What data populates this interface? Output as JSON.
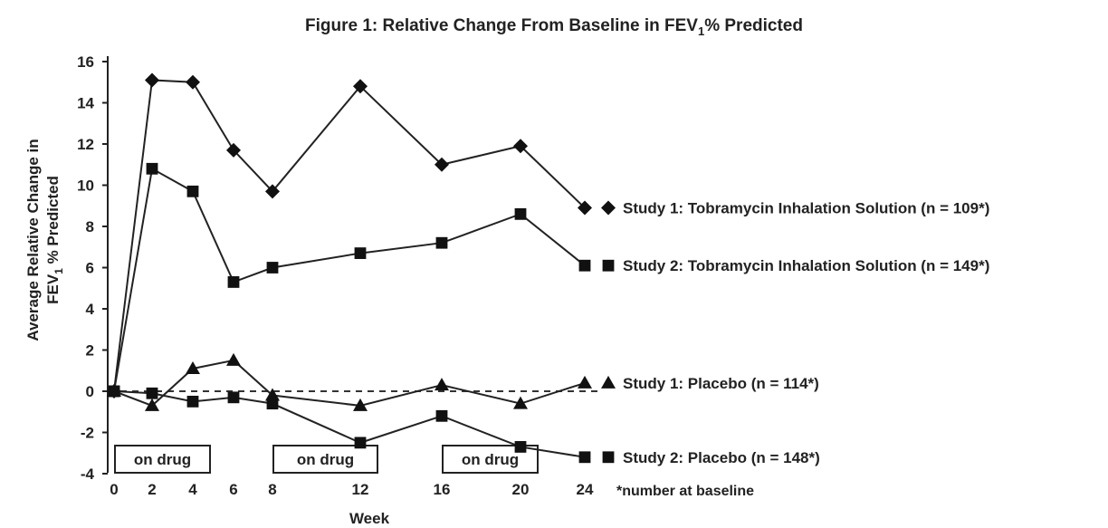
{
  "chart_data": {
    "type": "line",
    "title_pre": "Figure 1: Relative Change From Baseline in FEV",
    "title_sub": "1",
    "title_post": "% Predicted",
    "xlabel": "Week",
    "ylabel_line1": "Average Relative Change in",
    "ylabel_line2_pre": "FEV",
    "ylabel_line2_sub": "1",
    "ylabel_line2_post": " % Predicted",
    "x_ticks": [
      0,
      2,
      4,
      6,
      8,
      12,
      16,
      20,
      24
    ],
    "y_ticks": [
      16,
      14,
      12,
      10,
      8,
      6,
      4,
      2,
      0,
      -2,
      -4
    ],
    "ylim": [
      -4,
      16
    ],
    "grid": false,
    "legend_position": "right",
    "reference_line": {
      "y": 0,
      "style": "dashed"
    },
    "on_drug_label": "on drug",
    "on_drug_periods": [
      [
        0,
        4
      ],
      [
        8,
        12
      ],
      [
        16,
        20
      ]
    ],
    "note": "*number at baseline",
    "series": [
      {
        "name": "Study 1: Tobramycin Inhalation Solution (n = 109*)",
        "marker": "diamond",
        "x": [
          0,
          2,
          4,
          6,
          8,
          12,
          16,
          20,
          24
        ],
        "y": [
          0,
          15.1,
          15.0,
          11.7,
          9.7,
          14.8,
          11.0,
          11.9,
          8.9
        ]
      },
      {
        "name": "Study 2: Tobramycin Inhalation Solution (n = 149*)",
        "marker": "square",
        "x": [
          0,
          2,
          4,
          6,
          8,
          12,
          16,
          20,
          24
        ],
        "y": [
          0,
          10.8,
          9.7,
          5.3,
          6.0,
          6.7,
          7.2,
          8.6,
          6.1
        ]
      },
      {
        "name": "Study 1: Placebo (n = 114*)",
        "marker": "triangle",
        "x": [
          0,
          2,
          4,
          6,
          8,
          12,
          16,
          20,
          24
        ],
        "y": [
          0,
          -0.7,
          1.1,
          1.5,
          -0.2,
          -0.7,
          0.3,
          -0.6,
          0.4
        ]
      },
      {
        "name": "Study 2: Placebo (n = 148*)",
        "marker": "square",
        "x": [
          0,
          2,
          4,
          6,
          8,
          12,
          16,
          20,
          24
        ],
        "y": [
          0,
          -0.1,
          -0.5,
          -0.3,
          -0.6,
          -2.5,
          -1.2,
          -2.7,
          -3.2
        ]
      }
    ]
  }
}
